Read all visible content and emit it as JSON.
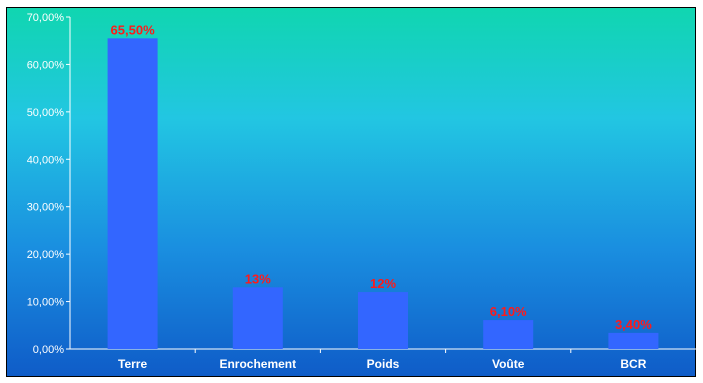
{
  "chart_data": {
    "type": "bar",
    "categories": [
      "Terre",
      "Enrochement",
      "Poids",
      "Voûte",
      "BCR"
    ],
    "values": [
      65.5,
      13,
      12,
      6.1,
      3.4
    ],
    "data_labels": [
      "65,50%",
      "13%",
      "12%",
      "6,10%",
      "3,40%"
    ],
    "y_ticks": [
      0,
      10,
      20,
      30,
      40,
      50,
      60,
      70
    ],
    "y_tick_labels": [
      "0,00%",
      "10,00%",
      "20,00%",
      "30,00%",
      "40,00%",
      "50,00%",
      "60,00%",
      "70,00%"
    ],
    "ylim": [
      0,
      70
    ],
    "grid": false,
    "legend": "none",
    "bar_color": "#3366ff",
    "data_label_color": "#ff1a1a",
    "background_gradient": [
      "#10d6b0",
      "#22c6e2",
      "#1a8fe0",
      "#0f5cc8"
    ]
  }
}
